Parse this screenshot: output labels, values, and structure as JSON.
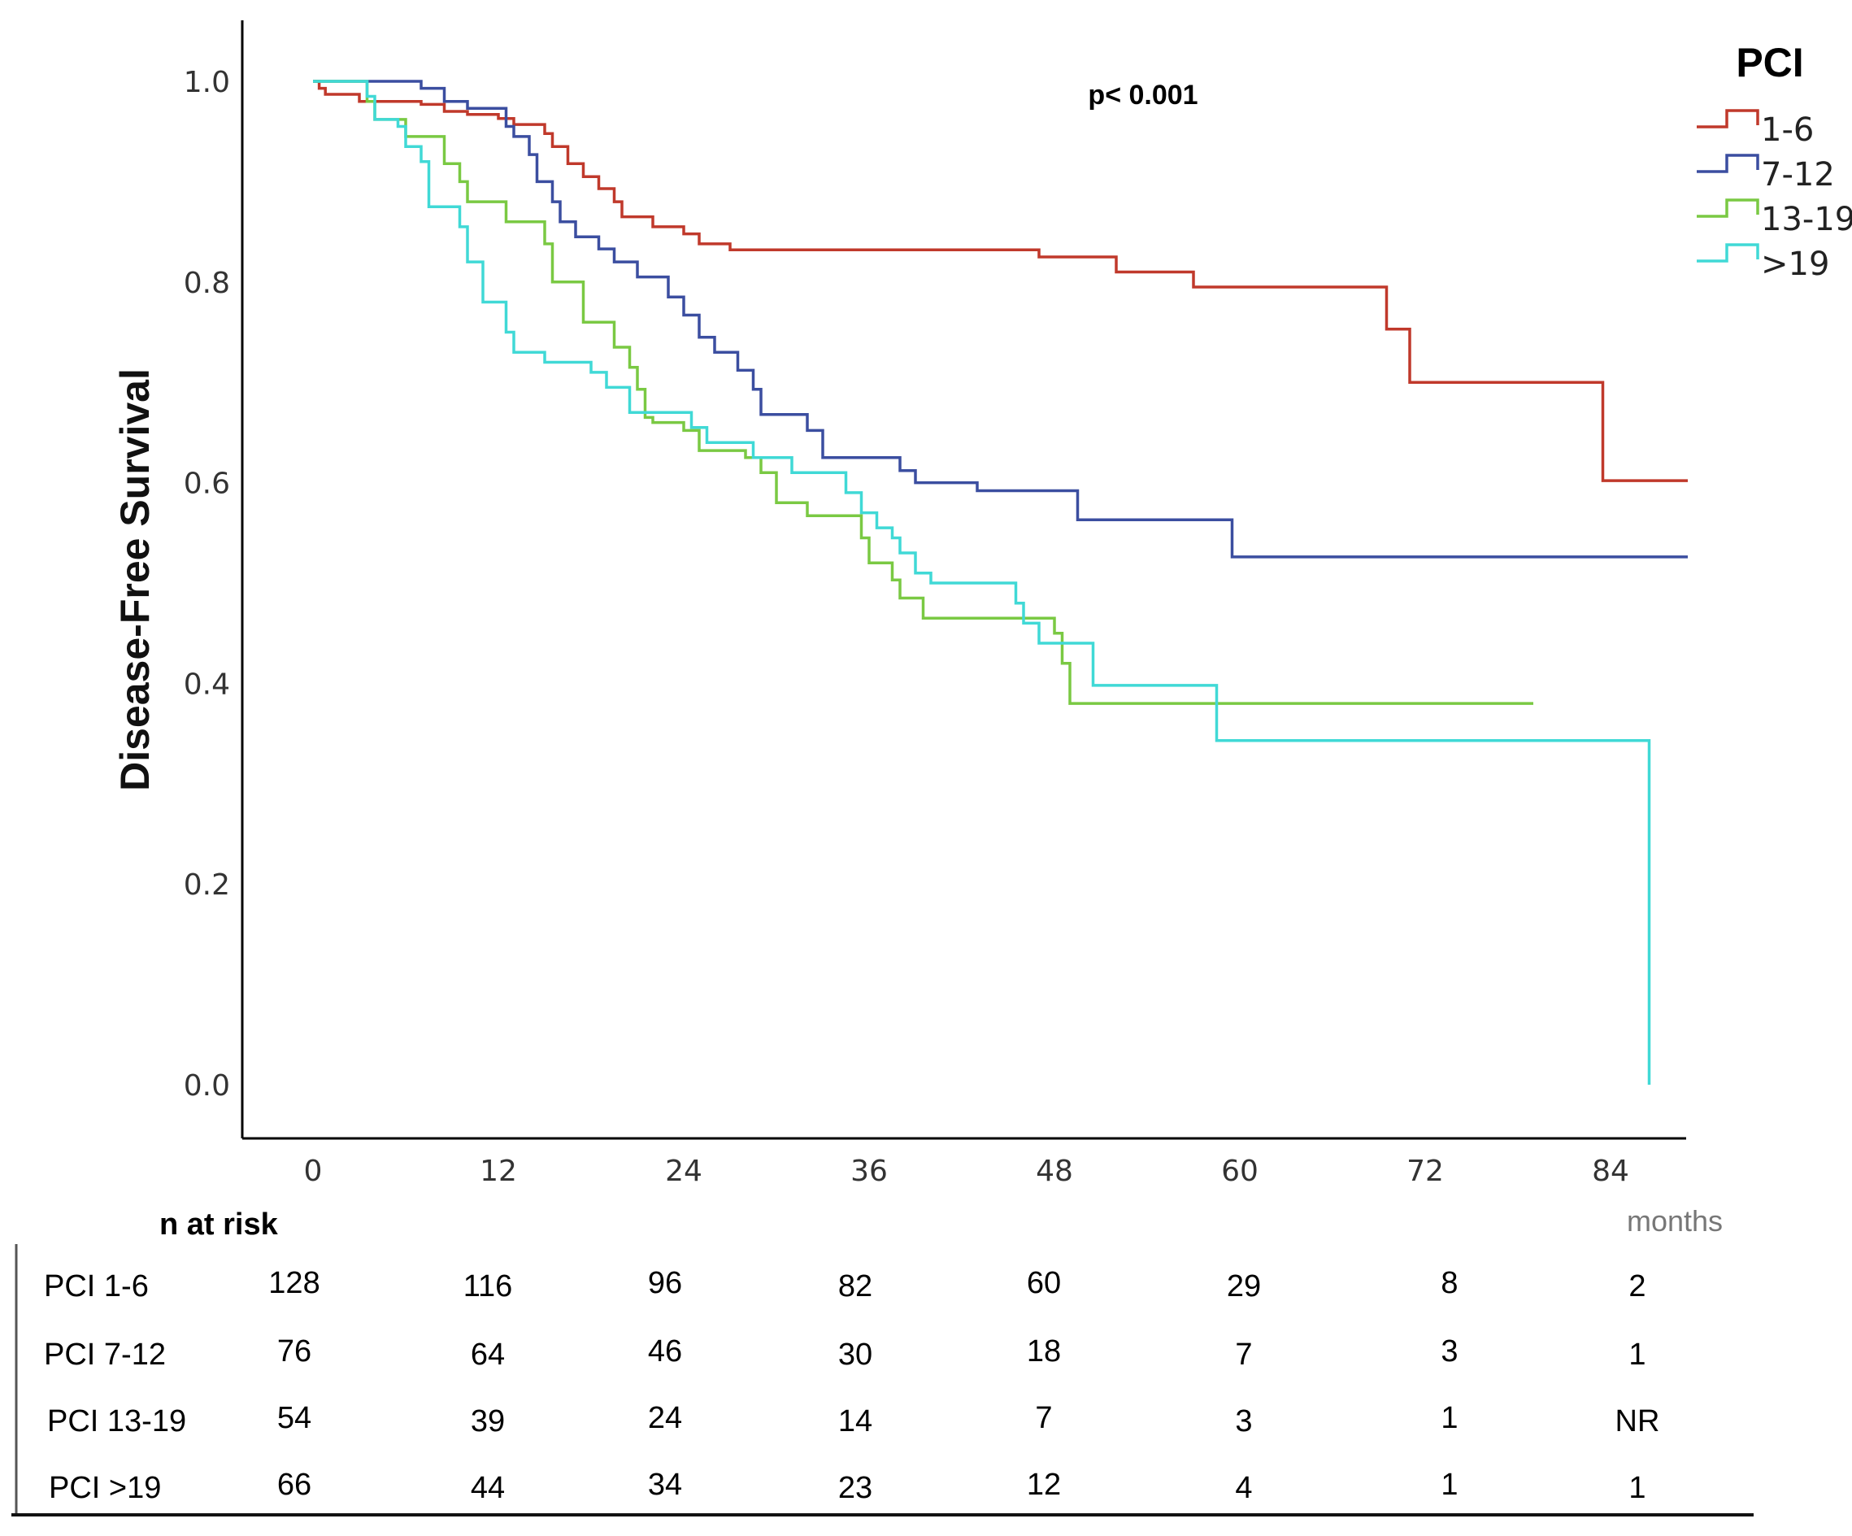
{
  "chart_data": {
    "type": "line",
    "step": true,
    "title": "",
    "xlabel": "",
    "ylabel": "Disease-Free Survival",
    "x_unit_label": "months",
    "annotation": "p< 0.001",
    "xlim": [
      -3,
      88
    ],
    "ylim": [
      0,
      1.0
    ],
    "x_ticks": [
      0,
      12,
      24,
      36,
      48,
      60,
      72,
      84
    ],
    "y_ticks": [
      "0.0",
      "0.2",
      "0.4",
      "0.6",
      "0.8",
      "1.0"
    ],
    "grid": false,
    "legend": {
      "title": "PCI",
      "position": "top-right"
    },
    "series": [
      {
        "name": "1-6",
        "color": "#c0392b",
        "points": [
          [
            0,
            1.0
          ],
          [
            0.4,
            0.993
          ],
          [
            0.8,
            0.987
          ],
          [
            2.5,
            0.987
          ],
          [
            3,
            0.98
          ],
          [
            6,
            0.98
          ],
          [
            7,
            0.977
          ],
          [
            8.5,
            0.97
          ],
          [
            10,
            0.967
          ],
          [
            12,
            0.963
          ],
          [
            13,
            0.957
          ],
          [
            15,
            0.948
          ],
          [
            15.5,
            0.935
          ],
          [
            16.5,
            0.918
          ],
          [
            17.5,
            0.905
          ],
          [
            18.5,
            0.893
          ],
          [
            19.5,
            0.88
          ],
          [
            20,
            0.865
          ],
          [
            22,
            0.855
          ],
          [
            24,
            0.848
          ],
          [
            25,
            0.838
          ],
          [
            27,
            0.832
          ],
          [
            35,
            0.832
          ],
          [
            40,
            0.832
          ],
          [
            45,
            0.832
          ],
          [
            47,
            0.825
          ],
          [
            52,
            0.81
          ],
          [
            57,
            0.795
          ],
          [
            69,
            0.795
          ],
          [
            69.5,
            0.753
          ],
          [
            71,
            0.7
          ],
          [
            83,
            0.7
          ],
          [
            83.5,
            0.602
          ],
          [
            89,
            0.602
          ]
        ]
      },
      {
        "name": "7-12",
        "color": "#3b4ea0",
        "points": [
          [
            0,
            1.0
          ],
          [
            6,
            1.0
          ],
          [
            7,
            0.993
          ],
          [
            8.5,
            0.98
          ],
          [
            10,
            0.973
          ],
          [
            12,
            0.973
          ],
          [
            12.5,
            0.955
          ],
          [
            13,
            0.945
          ],
          [
            14,
            0.927
          ],
          [
            14.5,
            0.9
          ],
          [
            15.5,
            0.88
          ],
          [
            16,
            0.86
          ],
          [
            17,
            0.845
          ],
          [
            18.5,
            0.833
          ],
          [
            19.5,
            0.82
          ],
          [
            21,
            0.805
          ],
          [
            23,
            0.785
          ],
          [
            24,
            0.767
          ],
          [
            25,
            0.745
          ],
          [
            26,
            0.73
          ],
          [
            27.5,
            0.712
          ],
          [
            28.5,
            0.693
          ],
          [
            29,
            0.668
          ],
          [
            32,
            0.652
          ],
          [
            33,
            0.625
          ],
          [
            38,
            0.612
          ],
          [
            39,
            0.6
          ],
          [
            42,
            0.6
          ],
          [
            43,
            0.592
          ],
          [
            49,
            0.592
          ],
          [
            49.5,
            0.563
          ],
          [
            59,
            0.563
          ],
          [
            59.5,
            0.526
          ],
          [
            89,
            0.526
          ]
        ]
      },
      {
        "name": "13-19",
        "color": "#7ac943",
        "points": [
          [
            0,
            1.0
          ],
          [
            3,
            1.0
          ],
          [
            3.5,
            0.98
          ],
          [
            4,
            0.962
          ],
          [
            5,
            0.962
          ],
          [
            6,
            0.945
          ],
          [
            8,
            0.945
          ],
          [
            8.5,
            0.918
          ],
          [
            9.5,
            0.9
          ],
          [
            10,
            0.88
          ],
          [
            12,
            0.88
          ],
          [
            12.5,
            0.86
          ],
          [
            14,
            0.86
          ],
          [
            15,
            0.838
          ],
          [
            15.5,
            0.8
          ],
          [
            17,
            0.8
          ],
          [
            17.5,
            0.76
          ],
          [
            19,
            0.76
          ],
          [
            19.5,
            0.735
          ],
          [
            20.5,
            0.715
          ],
          [
            21,
            0.693
          ],
          [
            21.5,
            0.665
          ],
          [
            22,
            0.66
          ],
          [
            24,
            0.652
          ],
          [
            25,
            0.632
          ],
          [
            28,
            0.625
          ],
          [
            29,
            0.61
          ],
          [
            30,
            0.58
          ],
          [
            32,
            0.567
          ],
          [
            35,
            0.567
          ],
          [
            35.5,
            0.545
          ],
          [
            36,
            0.52
          ],
          [
            37,
            0.52
          ],
          [
            37.5,
            0.503
          ],
          [
            38,
            0.485
          ],
          [
            39,
            0.485
          ],
          [
            39.5,
            0.465
          ],
          [
            47,
            0.465
          ],
          [
            48,
            0.45
          ],
          [
            48.5,
            0.42
          ],
          [
            49,
            0.38
          ],
          [
            79,
            0.38
          ]
        ]
      },
      {
        "name": ">19",
        "color": "#40d9d6",
        "points": [
          [
            0,
            1.0
          ],
          [
            3,
            1.0
          ],
          [
            3.5,
            0.985
          ],
          [
            4,
            0.962
          ],
          [
            4.5,
            0.962
          ],
          [
            5.5,
            0.955
          ],
          [
            6,
            0.935
          ],
          [
            7,
            0.92
          ],
          [
            7.5,
            0.875
          ],
          [
            9,
            0.875
          ],
          [
            9.5,
            0.855
          ],
          [
            10,
            0.82
          ],
          [
            11,
            0.78
          ],
          [
            12,
            0.78
          ],
          [
            12.5,
            0.75
          ],
          [
            13,
            0.73
          ],
          [
            14,
            0.73
          ],
          [
            15,
            0.72
          ],
          [
            17,
            0.72
          ],
          [
            18,
            0.71
          ],
          [
            19,
            0.695
          ],
          [
            20,
            0.695
          ],
          [
            20.5,
            0.67
          ],
          [
            24,
            0.67
          ],
          [
            24.5,
            0.655
          ],
          [
            25.5,
            0.64
          ],
          [
            28,
            0.64
          ],
          [
            28.5,
            0.625
          ],
          [
            30,
            0.625
          ],
          [
            31,
            0.61
          ],
          [
            34,
            0.61
          ],
          [
            34.5,
            0.59
          ],
          [
            35.5,
            0.57
          ],
          [
            36.5,
            0.555
          ],
          [
            37.5,
            0.545
          ],
          [
            38,
            0.53
          ],
          [
            39,
            0.51
          ],
          [
            40,
            0.5
          ],
          [
            45,
            0.5
          ],
          [
            45.5,
            0.48
          ],
          [
            46,
            0.46
          ],
          [
            47,
            0.44
          ],
          [
            50,
            0.44
          ],
          [
            50.5,
            0.398
          ],
          [
            58,
            0.398
          ],
          [
            58.5,
            0.343
          ],
          [
            86,
            0.343
          ],
          [
            86.5,
            0.0
          ]
        ]
      }
    ]
  },
  "risk_table": {
    "header": "n at risk",
    "rows": [
      {
        "label": "PCI 1-6",
        "values": [
          "128",
          "116",
          "96",
          "82",
          "60",
          "29",
          "8",
          "2"
        ]
      },
      {
        "label": "PCI 7-12",
        "values": [
          "76",
          "64",
          "46",
          "30",
          "18",
          "7",
          "3",
          "1"
        ]
      },
      {
        "label": "PCI 13-19",
        "values": [
          "54",
          "39",
          "24",
          "14",
          "7",
          "3",
          "1",
          "NR"
        ]
      },
      {
        "label": "PCI >19",
        "values": [
          "66",
          "44",
          "34",
          "23",
          "12",
          "4",
          "1",
          "1"
        ]
      }
    ]
  }
}
